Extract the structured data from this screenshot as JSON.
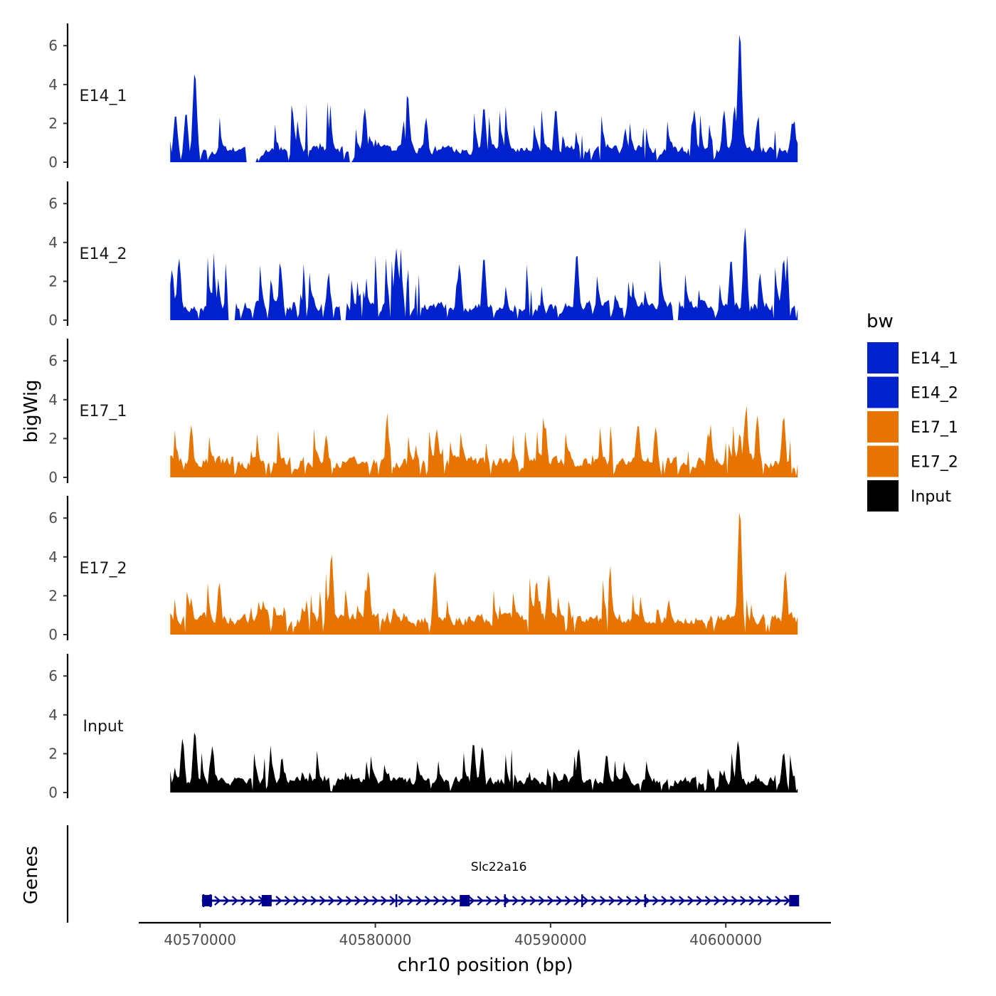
{
  "chart_data": {
    "type": "area",
    "ylabel": "bigWig",
    "xlabel": "chr10 position (bp)",
    "genes_label": "Genes",
    "xlim": [
      40566500,
      40606000
    ],
    "data_xrange": [
      40568300,
      40604100
    ],
    "ylim": [
      0,
      7.2
    ],
    "y_ticks": [
      "0",
      "2",
      "4",
      "6"
    ],
    "x_ticks": [
      {
        "value": 40570000,
        "label": "40570000"
      },
      {
        "value": 40580000,
        "label": "40580000"
      },
      {
        "value": 40590000,
        "label": "40590000"
      },
      {
        "value": 40600000,
        "label": "40600000"
      }
    ],
    "legend": {
      "title": "bw",
      "entries": [
        {
          "label": "E14_1",
          "color": "#0022cc"
        },
        {
          "label": "E14_2",
          "color": "#0022cc"
        },
        {
          "label": "E17_1",
          "color": "#e87400"
        },
        {
          "label": "E17_2",
          "color": "#e87400"
        },
        {
          "label": "Input",
          "color": "#000000"
        }
      ]
    },
    "tracks": [
      {
        "name": "E14_1",
        "color": "#0022cc",
        "seed": 11,
        "base": 0.8,
        "spike_p": 0.14,
        "spike_max": 2.4,
        "gaps": [
          [
            40572600,
            40573200
          ],
          [
            40578500,
            40578700
          ]
        ],
        "peaks": [
          {
            "pos": 40569700,
            "height": 4.7
          },
          {
            "pos": 40568600,
            "height": 2.5
          },
          {
            "pos": 40569200,
            "height": 2.6
          },
          {
            "pos": 40579400,
            "height": 2.8
          },
          {
            "pos": 40582900,
            "height": 2.3
          },
          {
            "pos": 40586200,
            "height": 2.9
          },
          {
            "pos": 40590300,
            "height": 2.8
          },
          {
            "pos": 40598200,
            "height": 2.7
          },
          {
            "pos": 40599900,
            "height": 2.7
          },
          {
            "pos": 40600500,
            "height": 2.9
          },
          {
            "pos": 40600800,
            "height": 6.8
          },
          {
            "pos": 40601800,
            "height": 2.1
          },
          {
            "pos": 40603800,
            "height": 2.1
          }
        ]
      },
      {
        "name": "E14_2",
        "color": "#0022cc",
        "seed": 23,
        "base": 0.9,
        "spike_p": 0.15,
        "spike_max": 2.4,
        "gaps": [
          [
            40571600,
            40572000
          ],
          [
            40578000,
            40578300
          ],
          [
            40597000,
            40597300
          ]
        ],
        "peaks": [
          {
            "pos": 40568400,
            "height": 2.6
          },
          {
            "pos": 40568800,
            "height": 3.2
          },
          {
            "pos": 40574600,
            "height": 2.7
          },
          {
            "pos": 40581200,
            "height": 3.7
          },
          {
            "pos": 40584800,
            "height": 2.9
          },
          {
            "pos": 40586200,
            "height": 3.3
          },
          {
            "pos": 40591500,
            "height": 3.5
          },
          {
            "pos": 40600300,
            "height": 3.2
          },
          {
            "pos": 40601100,
            "height": 4.8
          },
          {
            "pos": 40603300,
            "height": 3.2
          }
        ]
      },
      {
        "name": "E17_1",
        "color": "#e87400",
        "seed": 37,
        "base": 1.0,
        "spike_p": 0.13,
        "spike_max": 2.0,
        "gaps": [],
        "peaks": [
          {
            "pos": 40569500,
            "height": 2.7
          },
          {
            "pos": 40577200,
            "height": 2.2
          },
          {
            "pos": 40583500,
            "height": 2.5
          },
          {
            "pos": 40589700,
            "height": 2.7
          },
          {
            "pos": 40595000,
            "height": 2.8
          },
          {
            "pos": 40596000,
            "height": 2.6
          },
          {
            "pos": 40599000,
            "height": 2.3
          },
          {
            "pos": 40600800,
            "height": 2.3
          },
          {
            "pos": 40601800,
            "height": 3.2
          },
          {
            "pos": 40603300,
            "height": 3.2
          }
        ]
      },
      {
        "name": "E17_2",
        "color": "#e87400",
        "seed": 53,
        "base": 1.0,
        "spike_p": 0.13,
        "spike_max": 2.3,
        "gaps": [],
        "peaks": [
          {
            "pos": 40571100,
            "height": 2.7
          },
          {
            "pos": 40577500,
            "height": 4.2
          },
          {
            "pos": 40579600,
            "height": 3.3
          },
          {
            "pos": 40583400,
            "height": 3.3
          },
          {
            "pos": 40589200,
            "height": 2.8
          },
          {
            "pos": 40589900,
            "height": 3.1
          },
          {
            "pos": 40600800,
            "height": 6.5
          },
          {
            "pos": 40603400,
            "height": 3.3
          }
        ]
      },
      {
        "name": "Input",
        "color": "#000000",
        "seed": 71,
        "base": 0.75,
        "spike_p": 0.11,
        "spike_max": 1.6,
        "gaps": [],
        "peaks": [
          {
            "pos": 40569000,
            "height": 2.8
          },
          {
            "pos": 40569700,
            "height": 3.2
          },
          {
            "pos": 40570700,
            "height": 2.4
          },
          {
            "pos": 40585600,
            "height": 2.6
          },
          {
            "pos": 40586100,
            "height": 2.4
          },
          {
            "pos": 40591600,
            "height": 2.3
          },
          {
            "pos": 40593200,
            "height": 2.0
          },
          {
            "pos": 40600700,
            "height": 2.7
          },
          {
            "pos": 40603300,
            "height": 2.1
          }
        ]
      }
    ],
    "gene": {
      "name": "Slc22a16",
      "color": "#00008b",
      "strand": "+",
      "start": 40570100,
      "end": 40604000,
      "exons": [
        40570400,
        40573800,
        40585100,
        40603900
      ],
      "small_marks": [
        40570200,
        40570600,
        40581200,
        40587400,
        40591800,
        40595400
      ]
    }
  }
}
